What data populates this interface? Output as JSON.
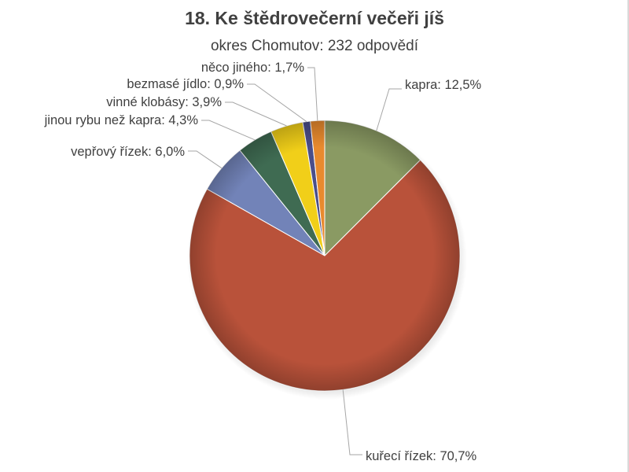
{
  "chart_data": {
    "type": "pie",
    "title": "18. Ke štědrovečerní večeři jíš",
    "subtitle": "okres Chomutov: 232 odpovědí",
    "slices": [
      {
        "name": "kapra",
        "value": 12.5,
        "label": "kapra: 12,5%",
        "color": "#8a9a63"
      },
      {
        "name": "kuřecí řízek",
        "value": 70.7,
        "label": "kuřecí řízek: 70,7%",
        "color": "#b9523a"
      },
      {
        "name": "vepřový řízek",
        "value": 6.0,
        "label": "vepřový řízek: 6,0%",
        "color": "#7283b8"
      },
      {
        "name": "jinou rybu než kapra",
        "value": 4.3,
        "label": "jinou rybu než kapra: 4,3%",
        "color": "#3f6b52"
      },
      {
        "name": "vinné klobásy",
        "value": 3.9,
        "label": "vinné klobásy: 3,9%",
        "color": "#f1cf19"
      },
      {
        "name": "bezmasé jídlo",
        "value": 0.9,
        "label": "bezmasé jídlo: 0,9%",
        "color": "#4a4e8a"
      },
      {
        "name": "něco jiného",
        "value": 1.7,
        "label": "něco jiného: 1,7%",
        "color": "#e88a2e"
      }
    ]
  }
}
